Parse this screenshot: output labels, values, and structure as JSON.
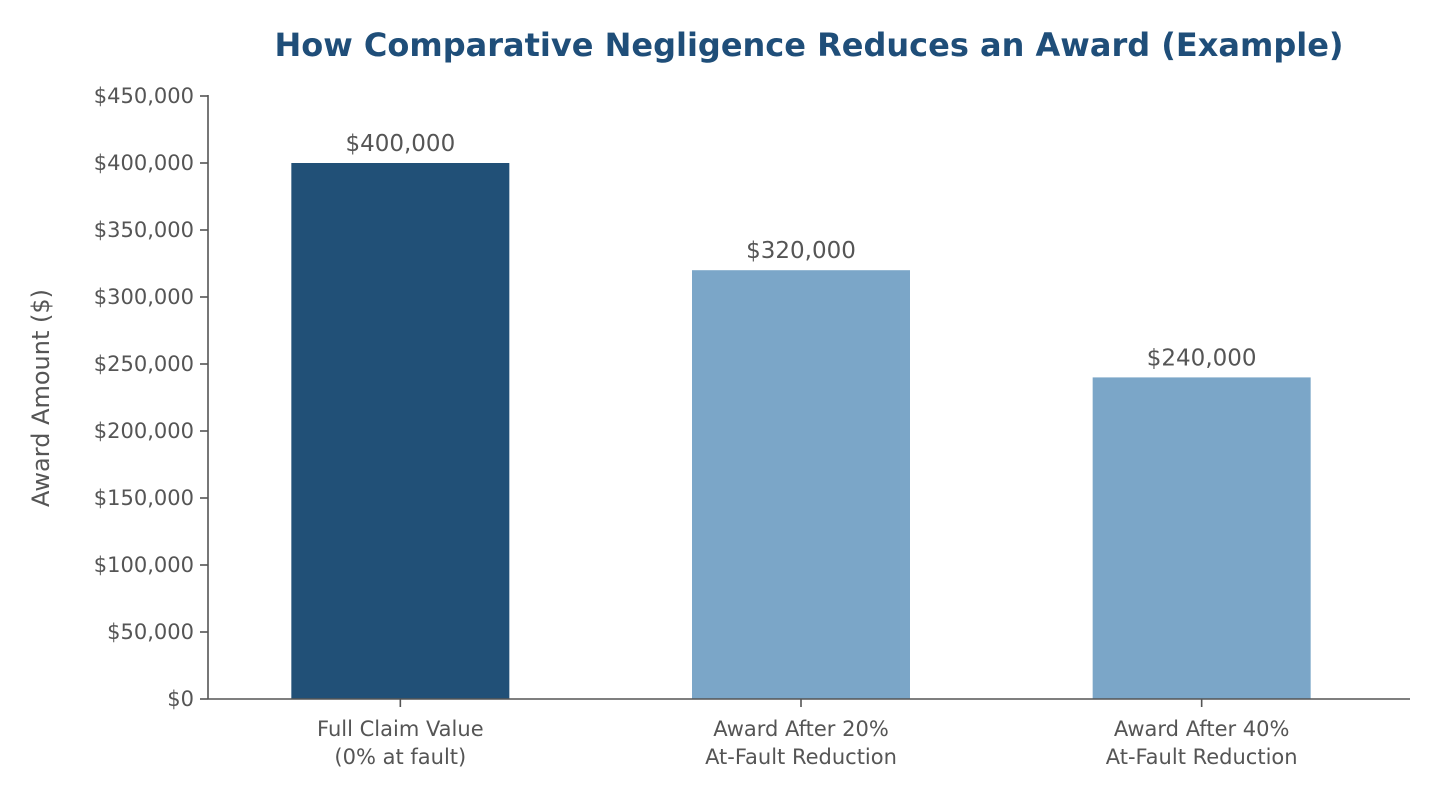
{
  "chart_data": {
    "type": "bar",
    "title": "How Comparative Negligence Reduces an Award (Example)",
    "xlabel": "",
    "ylabel": "Award Amount ($)",
    "categories": [
      [
        "Full Claim Value",
        "(0% at fault)"
      ],
      [
        "Award After 20%",
        "At-Fault Reduction"
      ],
      [
        "Award After 40%",
        "At-Fault Reduction"
      ]
    ],
    "values": [
      400000,
      320000,
      240000
    ],
    "value_labels": [
      "$400,000",
      "$320,000",
      "$240,000"
    ],
    "bar_colors": [
      "#215077",
      "#7ba6c8",
      "#7ba6c8"
    ],
    "ylim": [
      0,
      450000
    ],
    "yticks": [
      0,
      50000,
      100000,
      150000,
      200000,
      250000,
      300000,
      350000,
      400000,
      450000
    ],
    "ytick_labels": [
      "$0",
      "$50,000",
      "$100,000",
      "$150,000",
      "$200,000",
      "$250,000",
      "$300,000",
      "$350,000",
      "$400,000",
      "$450,000"
    ],
    "grid": false,
    "legend": "none",
    "colors": {
      "title": "#1f4e79",
      "axis": "#555555",
      "text": "#555555"
    }
  }
}
